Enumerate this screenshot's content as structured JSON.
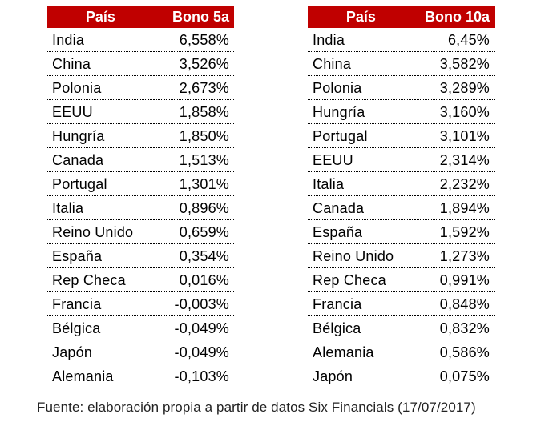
{
  "tables": [
    {
      "id": "bono5a",
      "header": {
        "country": "País",
        "yield": "Bono 5a"
      },
      "rows": [
        {
          "country": "India",
          "yield": "6,558%"
        },
        {
          "country": "China",
          "yield": "3,526%"
        },
        {
          "country": "Polonia",
          "yield": "2,673%"
        },
        {
          "country": "EEUU",
          "yield": "1,858%"
        },
        {
          "country": "Hungría",
          "yield": "1,850%"
        },
        {
          "country": "Canada",
          "yield": "1,513%"
        },
        {
          "country": "Portugal",
          "yield": "1,301%"
        },
        {
          "country": "Italia",
          "yield": "0,896%"
        },
        {
          "country": "Reino Unido",
          "yield": "0,659%"
        },
        {
          "country": "España",
          "yield": "0,354%"
        },
        {
          "country": "Rep Checa",
          "yield": "0,016%"
        },
        {
          "country": "Francia",
          "yield": "-0,003%"
        },
        {
          "country": "Bélgica",
          "yield": "-0,049%"
        },
        {
          "country": "Japón",
          "yield": "-0,049%"
        },
        {
          "country": "Alemania",
          "yield": "-0,103%"
        }
      ]
    },
    {
      "id": "bono10a",
      "header": {
        "country": "País",
        "yield": "Bono 10a"
      },
      "rows": [
        {
          "country": "India",
          "yield": "6,45%"
        },
        {
          "country": "China",
          "yield": "3,582%"
        },
        {
          "country": "Polonia",
          "yield": "3,289%"
        },
        {
          "country": "Hungría",
          "yield": "3,160%"
        },
        {
          "country": "Portugal",
          "yield": "3,101%"
        },
        {
          "country": "EEUU",
          "yield": "2,314%"
        },
        {
          "country": "Italia",
          "yield": "2,232%"
        },
        {
          "country": "Canada",
          "yield": "1,894%"
        },
        {
          "country": "España",
          "yield": "1,592%"
        },
        {
          "country": "Reino Unido",
          "yield": "1,273%"
        },
        {
          "country": "Rep Checa",
          "yield": "0,991%"
        },
        {
          "country": "Francia",
          "yield": "0,848%"
        },
        {
          "country": "Bélgica",
          "yield": "0,832%"
        },
        {
          "country": "Alemania",
          "yield": "0,586%"
        },
        {
          "country": "Japón",
          "yield": "0,075%"
        }
      ]
    }
  ],
  "source_note": "Fuente: elaboración propia a partir de datos Six Financials (17/07/2017)",
  "colors": {
    "header_background": "#c00000",
    "header_text": "#ffffff",
    "body_text": "#000000"
  }
}
